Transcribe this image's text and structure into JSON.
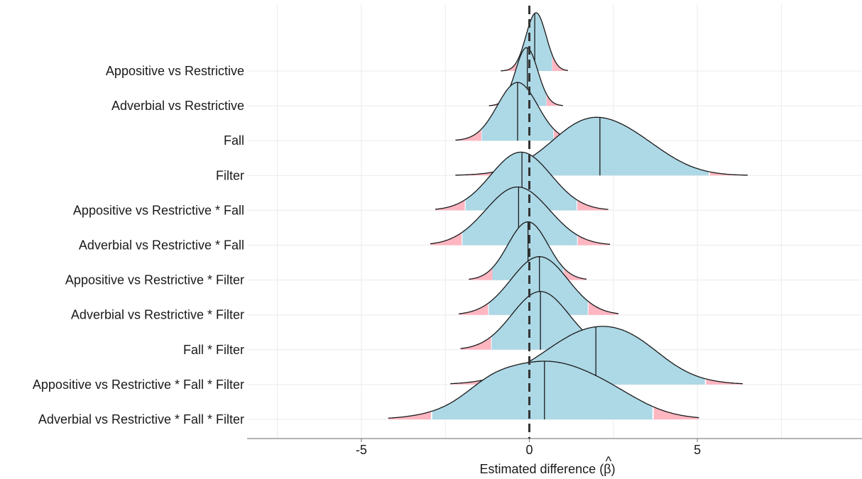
{
  "chart_data": {
    "type": "ridgeline",
    "xlabel": "Estimated difference (β̂)",
    "xlabel_parts": [
      "Estimated difference (",
      "β",
      ")"
    ],
    "ylabel": "",
    "xlim": [
      -8.4,
      9.9
    ],
    "xticks": [
      -5,
      0,
      5
    ],
    "xtick_labels": [
      "-5",
      "0",
      "5"
    ],
    "reference_line": 0,
    "grid": true,
    "colors": {
      "body": "#add8e6",
      "tail": "#ffb6c1",
      "outline": "#1a1a1a",
      "reference": "#333333",
      "grid": "#ebebeb",
      "axis": "#888888"
    },
    "series": [
      {
        "name": "Appositive vs Restrictive",
        "range": [
          -0.85,
          1.15
        ],
        "ci": [
          -0.38,
          0.68
        ],
        "median": 0.16,
        "peak": 0.18,
        "components": [
          [
            0.2,
            0.3,
            1.0
          ]
        ]
      },
      {
        "name": "Adverbial vs Restrictive",
        "range": [
          -1.2,
          1.0
        ],
        "ci": [
          -0.66,
          0.51
        ],
        "median": -0.06,
        "peak": -0.08,
        "components": [
          [
            -0.08,
            0.33,
            1.0
          ]
        ]
      },
      {
        "name": "Fall",
        "range": [
          -2.2,
          1.5
        ],
        "ci": [
          -1.42,
          0.72
        ],
        "median": -0.35,
        "peak": -0.38,
        "components": [
          [
            -0.35,
            0.6,
            1.0
          ]
        ]
      },
      {
        "name": "Filter",
        "range": [
          -2.2,
          6.5
        ],
        "ci": [
          -0.95,
          5.35
        ],
        "median": 2.1,
        "peak": 2.1,
        "components": [
          [
            2.1,
            1.35,
            1.0
          ],
          [
            1.35,
            0.75,
            0.1
          ],
          [
            3.7,
            0.9,
            0.08
          ]
        ]
      },
      {
        "name": "Appositive vs Restrictive * Fall",
        "range": [
          -2.8,
          2.35
        ],
        "ci": [
          -1.9,
          1.42
        ],
        "median": -0.22,
        "peak": -0.25,
        "components": [
          [
            -0.25,
            0.9,
            1.0
          ]
        ]
      },
      {
        "name": "Adverbial vs Restrictive * Fall",
        "range": [
          -2.95,
          2.4
        ],
        "ci": [
          -2.0,
          1.42
        ],
        "median": -0.32,
        "peak": -0.35,
        "components": [
          [
            -0.35,
            0.95,
            1.0
          ]
        ]
      },
      {
        "name": "Appositive vs Restrictive * Filter",
        "range": [
          -1.8,
          1.7
        ],
        "ci": [
          -1.1,
          1.02
        ],
        "median": -0.04,
        "peak": -0.04,
        "components": [
          [
            -0.04,
            0.6,
            1.0
          ]
        ]
      },
      {
        "name": "Adverbial vs Restrictive * Filter",
        "range": [
          -2.1,
          2.65
        ],
        "ci": [
          -1.22,
          1.75
        ],
        "median": 0.3,
        "peak": 0.3,
        "components": [
          [
            0.3,
            0.85,
            1.0
          ]
        ]
      },
      {
        "name": "Fall *  Filter",
        "range": [
          -2.05,
          2.7
        ],
        "ci": [
          -1.12,
          1.8
        ],
        "median": 0.33,
        "peak": 0.33,
        "components": [
          [
            0.33,
            0.85,
            1.0
          ]
        ]
      },
      {
        "name": "Appositive vs Restrictive * Fall * Filter",
        "range": [
          -2.35,
          6.35
        ],
        "ci": [
          -1.15,
          5.25
        ],
        "median": 1.98,
        "peak": 2.0,
        "components": [
          [
            2.0,
            1.5,
            1.0
          ],
          [
            3.3,
            0.8,
            0.12
          ]
        ]
      },
      {
        "name": "Adverbial vs Restrictive * Fall * Filter",
        "range": [
          -4.2,
          5.05
        ],
        "ci": [
          -2.9,
          3.7
        ],
        "median": 0.45,
        "peak": 0.55,
        "components": [
          [
            0.5,
            1.7,
            1.0
          ],
          [
            -1.2,
            0.7,
            0.15
          ],
          [
            2.6,
            0.9,
            0.1
          ]
        ]
      }
    ]
  }
}
